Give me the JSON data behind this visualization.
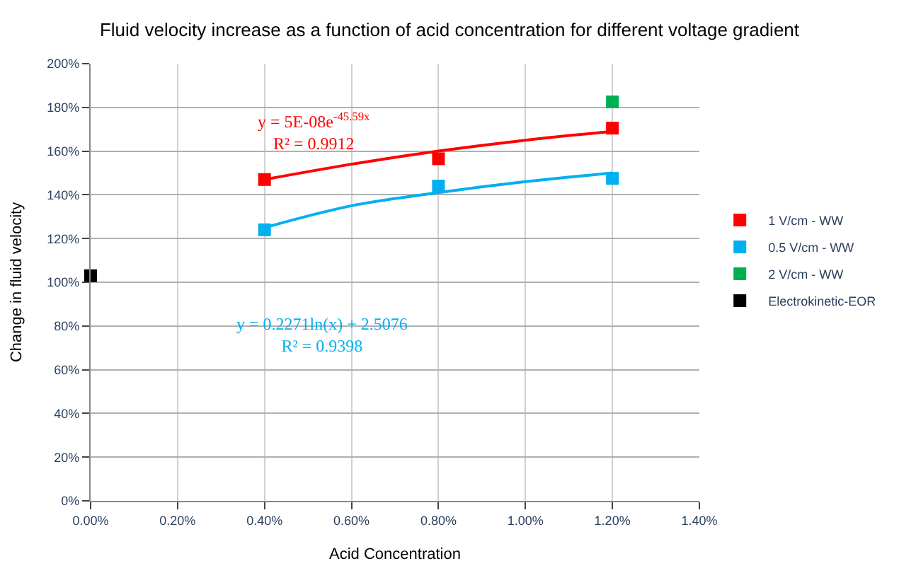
{
  "chart_data": {
    "type": "scatter",
    "title": "Fluid velocity increase as a function of acid concentration for different voltage gradient",
    "xlabel": "Acid Concentration",
    "ylabel": "Change in fluid velocity",
    "xlim": [
      0,
      1.4
    ],
    "xticks": [
      {
        "value": 0,
        "label": "0.00%"
      },
      {
        "value": 0.2,
        "label": "0.20%"
      },
      {
        "value": 0.4,
        "label": "0.40%"
      },
      {
        "value": 0.6,
        "label": "0.60%"
      },
      {
        "value": 0.8,
        "label": "0.80%"
      },
      {
        "value": 1.0,
        "label": "1.00%"
      },
      {
        "value": 1.2,
        "label": "1.20%"
      },
      {
        "value": 1.4,
        "label": "1.40%"
      }
    ],
    "ylim": [
      0,
      200
    ],
    "yticks": [
      {
        "value": 0,
        "label": "0%"
      },
      {
        "value": 20,
        "label": "20%"
      },
      {
        "value": 40,
        "label": "40%"
      },
      {
        "value": 60,
        "label": "60%"
      },
      {
        "value": 80,
        "label": "80%"
      },
      {
        "value": 100,
        "label": "100%"
      },
      {
        "value": 120,
        "label": "120%"
      },
      {
        "value": 140,
        "label": "140%"
      },
      {
        "value": 160,
        "label": "160%"
      },
      {
        "value": 180,
        "label": "180%"
      },
      {
        "value": 200,
        "label": "200%"
      }
    ],
    "grid": true,
    "legend": "right",
    "marker": "square",
    "series": [
      {
        "name": "1 V/cm - WW",
        "color": "#ff0000",
        "x": [
          0.4,
          0.8,
          1.2
        ],
        "values": [
          147,
          156.5,
          170.5
        ]
      },
      {
        "name": "0.5 V/cm - WW",
        "color": "#00b0f0",
        "x": [
          0.4,
          0.8,
          1.2
        ],
        "values": [
          124,
          144,
          147.5
        ]
      },
      {
        "name": "2 V/cm - WW",
        "color": "#00b050",
        "x": [
          1.2
        ],
        "values": [
          182.5
        ]
      },
      {
        "name": "Electrokinetic-EOR",
        "color": "#000000",
        "x": [
          0
        ],
        "values": [
          103
        ]
      },
      {
        "type": "line",
        "marker": "none",
        "color": "#ff0000",
        "x": [
          0.4,
          0.6,
          0.8,
          1.0,
          1.2
        ],
        "values": [
          147,
          154,
          160,
          165,
          169
        ]
      },
      {
        "type": "line",
        "marker": "none",
        "color": "#00b0f0",
        "x": [
          0.4,
          0.6,
          0.8,
          1.0,
          1.2
        ],
        "values": [
          125,
          135,
          141,
          146,
          150
        ]
      }
    ],
    "annotations": [
      "y = 5E-08e$^{-45.59x}$\nR² = 0.9912",
      "y = 0.2271ln(x) + 2.5076\nR² = 0.9398"
    ]
  }
}
